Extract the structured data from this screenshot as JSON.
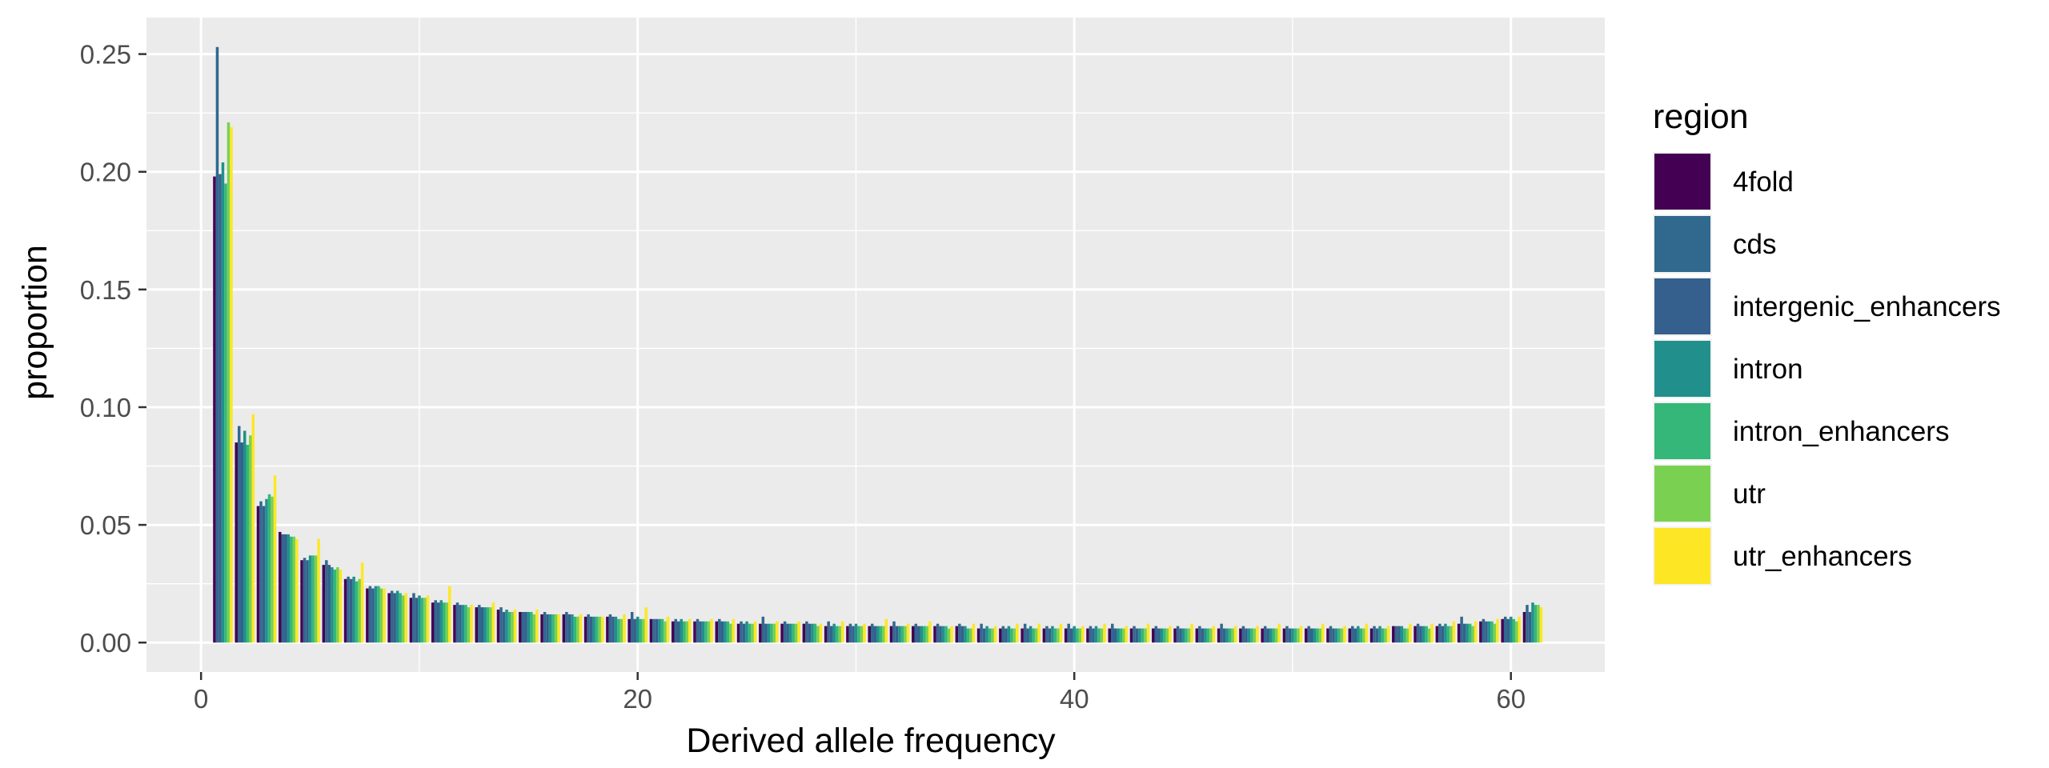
{
  "chart_data": {
    "type": "bar",
    "title": "",
    "xlabel": "Derived allele frequency",
    "ylabel": "proportion",
    "xlim": [
      -2.5,
      64.3
    ],
    "ylim": [
      -0.0125,
      0.2655
    ],
    "x_ticks": [
      0,
      20,
      40,
      60
    ],
    "x_tick_labels": [
      "0",
      "20",
      "40",
      "60"
    ],
    "y_ticks": [
      0,
      0.05,
      0.1,
      0.15,
      0.2,
      0.25
    ],
    "y_tick_labels": [
      "0.00",
      "0.05",
      "0.10",
      "0.15",
      "0.20",
      "0.25"
    ],
    "grid": true,
    "legend_position": "right",
    "legend_title": "region",
    "x": [
      1,
      2,
      3,
      4,
      5,
      6,
      7,
      8,
      9,
      10,
      11,
      12,
      13,
      14,
      15,
      16,
      17,
      18,
      19,
      20,
      21,
      22,
      23,
      24,
      25,
      26,
      27,
      28,
      29,
      30,
      31,
      32,
      33,
      34,
      35,
      36,
      37,
      38,
      39,
      40,
      41,
      42,
      43,
      44,
      45,
      46,
      47,
      48,
      49,
      50,
      51,
      52,
      53,
      54,
      55,
      56,
      57,
      58,
      59,
      60,
      61
    ],
    "series": [
      {
        "name": "4fold",
        "color": "#440154",
        "values": [
          0.198,
          0.085,
          0.058,
          0.047,
          0.035,
          0.033,
          0.027,
          0.023,
          0.021,
          0.019,
          0.017,
          0.016,
          0.015,
          0.014,
          0.013,
          0.012,
          0.012,
          0.011,
          0.011,
          0.01,
          0.01,
          0.009,
          0.009,
          0.009,
          0.008,
          0.008,
          0.008,
          0.008,
          0.007,
          0.007,
          0.007,
          0.007,
          0.007,
          0.007,
          0.007,
          0.006,
          0.006,
          0.006,
          0.006,
          0.006,
          0.006,
          0.006,
          0.006,
          0.006,
          0.006,
          0.006,
          0.006,
          0.006,
          0.006,
          0.006,
          0.006,
          0.006,
          0.006,
          0.006,
          0.007,
          0.007,
          0.007,
          0.008,
          0.009,
          0.01,
          0.013
        ]
      },
      {
        "name": "cds",
        "color": "#31688E",
        "values": [
          0.253,
          0.092,
          0.06,
          0.046,
          0.036,
          0.035,
          0.028,
          0.024,
          0.022,
          0.021,
          0.018,
          0.017,
          0.016,
          0.015,
          0.013,
          0.013,
          0.013,
          0.012,
          0.012,
          0.013,
          0.01,
          0.01,
          0.01,
          0.01,
          0.009,
          0.011,
          0.009,
          0.009,
          0.009,
          0.008,
          0.008,
          0.009,
          0.008,
          0.008,
          0.008,
          0.008,
          0.007,
          0.008,
          0.007,
          0.008,
          0.007,
          0.008,
          0.007,
          0.007,
          0.007,
          0.007,
          0.008,
          0.007,
          0.007,
          0.007,
          0.007,
          0.007,
          0.007,
          0.007,
          0.007,
          0.008,
          0.008,
          0.011,
          0.01,
          0.011,
          0.016
        ]
      },
      {
        "name": "intergenic_enhancers",
        "color": "#35608D",
        "values": [
          0.199,
          0.085,
          0.058,
          0.046,
          0.035,
          0.033,
          0.027,
          0.023,
          0.021,
          0.019,
          0.017,
          0.016,
          0.015,
          0.013,
          0.013,
          0.012,
          0.012,
          0.011,
          0.011,
          0.01,
          0.01,
          0.009,
          0.009,
          0.009,
          0.008,
          0.008,
          0.008,
          0.008,
          0.007,
          0.007,
          0.007,
          0.007,
          0.007,
          0.007,
          0.007,
          0.006,
          0.006,
          0.006,
          0.006,
          0.006,
          0.006,
          0.006,
          0.006,
          0.006,
          0.006,
          0.006,
          0.006,
          0.006,
          0.006,
          0.006,
          0.006,
          0.006,
          0.006,
          0.006,
          0.007,
          0.007,
          0.007,
          0.008,
          0.009,
          0.01,
          0.013
        ]
      },
      {
        "name": "intron",
        "color": "#21908C",
        "values": [
          0.204,
          0.09,
          0.061,
          0.046,
          0.037,
          0.032,
          0.028,
          0.024,
          0.022,
          0.02,
          0.018,
          0.016,
          0.015,
          0.014,
          0.013,
          0.012,
          0.012,
          0.011,
          0.011,
          0.011,
          0.01,
          0.01,
          0.009,
          0.009,
          0.009,
          0.008,
          0.008,
          0.008,
          0.008,
          0.008,
          0.007,
          0.007,
          0.007,
          0.007,
          0.007,
          0.007,
          0.007,
          0.007,
          0.007,
          0.007,
          0.007,
          0.006,
          0.006,
          0.006,
          0.006,
          0.006,
          0.006,
          0.006,
          0.006,
          0.006,
          0.006,
          0.006,
          0.007,
          0.007,
          0.007,
          0.007,
          0.008,
          0.008,
          0.009,
          0.011,
          0.017
        ]
      },
      {
        "name": "intron_enhancers",
        "color": "#35B779",
        "values": [
          0.195,
          0.084,
          0.063,
          0.045,
          0.037,
          0.031,
          0.026,
          0.024,
          0.021,
          0.019,
          0.017,
          0.016,
          0.015,
          0.013,
          0.013,
          0.012,
          0.011,
          0.011,
          0.01,
          0.01,
          0.01,
          0.009,
          0.009,
          0.009,
          0.008,
          0.008,
          0.008,
          0.008,
          0.007,
          0.007,
          0.007,
          0.007,
          0.007,
          0.007,
          0.006,
          0.006,
          0.006,
          0.006,
          0.006,
          0.006,
          0.006,
          0.006,
          0.006,
          0.006,
          0.006,
          0.006,
          0.006,
          0.006,
          0.006,
          0.006,
          0.006,
          0.006,
          0.006,
          0.006,
          0.006,
          0.007,
          0.007,
          0.008,
          0.009,
          0.01,
          0.016
        ]
      },
      {
        "name": "utr",
        "color": "#7AD151",
        "values": [
          0.221,
          0.088,
          0.062,
          0.045,
          0.037,
          0.032,
          0.027,
          0.023,
          0.02,
          0.019,
          0.017,
          0.015,
          0.015,
          0.013,
          0.012,
          0.012,
          0.011,
          0.011,
          0.01,
          0.01,
          0.009,
          0.009,
          0.009,
          0.008,
          0.008,
          0.008,
          0.008,
          0.007,
          0.007,
          0.007,
          0.007,
          0.007,
          0.007,
          0.006,
          0.006,
          0.006,
          0.006,
          0.006,
          0.006,
          0.006,
          0.006,
          0.006,
          0.006,
          0.006,
          0.006,
          0.006,
          0.006,
          0.006,
          0.006,
          0.006,
          0.006,
          0.006,
          0.006,
          0.006,
          0.006,
          0.006,
          0.007,
          0.007,
          0.008,
          0.009,
          0.016
        ]
      },
      {
        "name": "utr_enhancers",
        "color": "#FDE725",
        "values": [
          0.219,
          0.097,
          0.071,
          0.044,
          0.044,
          0.031,
          0.034,
          0.023,
          0.021,
          0.02,
          0.024,
          0.016,
          0.017,
          0.014,
          0.014,
          0.012,
          0.012,
          0.011,
          0.012,
          0.015,
          0.011,
          0.01,
          0.01,
          0.01,
          0.009,
          0.009,
          0.009,
          0.008,
          0.009,
          0.008,
          0.01,
          0.008,
          0.009,
          0.007,
          0.008,
          0.007,
          0.008,
          0.008,
          0.008,
          0.007,
          0.008,
          0.007,
          0.008,
          0.007,
          0.008,
          0.007,
          0.007,
          0.007,
          0.008,
          0.007,
          0.008,
          0.007,
          0.008,
          0.007,
          0.008,
          0.008,
          0.009,
          0.009,
          0.01,
          0.011,
          0.015
        ]
      }
    ]
  }
}
